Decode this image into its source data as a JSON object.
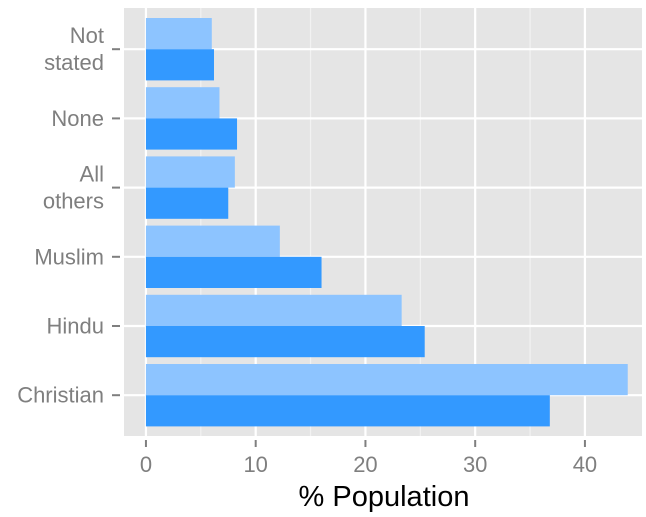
{
  "chart_data": {
    "type": "bar",
    "orientation": "horizontal",
    "categories": [
      [
        "Not",
        "stated"
      ],
      [
        "None"
      ],
      [
        "All",
        "others"
      ],
      [
        "Muslim"
      ],
      [
        "Hindu"
      ],
      [
        "Christian"
      ]
    ],
    "series": [
      {
        "values": [
          6.0,
          6.7,
          8.1,
          12.2,
          23.3,
          43.9
        ],
        "color": "#8dc4ff"
      },
      {
        "values": [
          6.2,
          8.3,
          7.5,
          16.0,
          25.4,
          36.8
        ],
        "color": "#3399ff"
      }
    ],
    "xlabel": "% Population",
    "xticks": [
      0,
      10,
      20,
      30,
      40
    ],
    "xlim": [
      -2,
      45.2
    ],
    "grid": true,
    "panel_background": "#e5e5e5",
    "legend": "none"
  }
}
